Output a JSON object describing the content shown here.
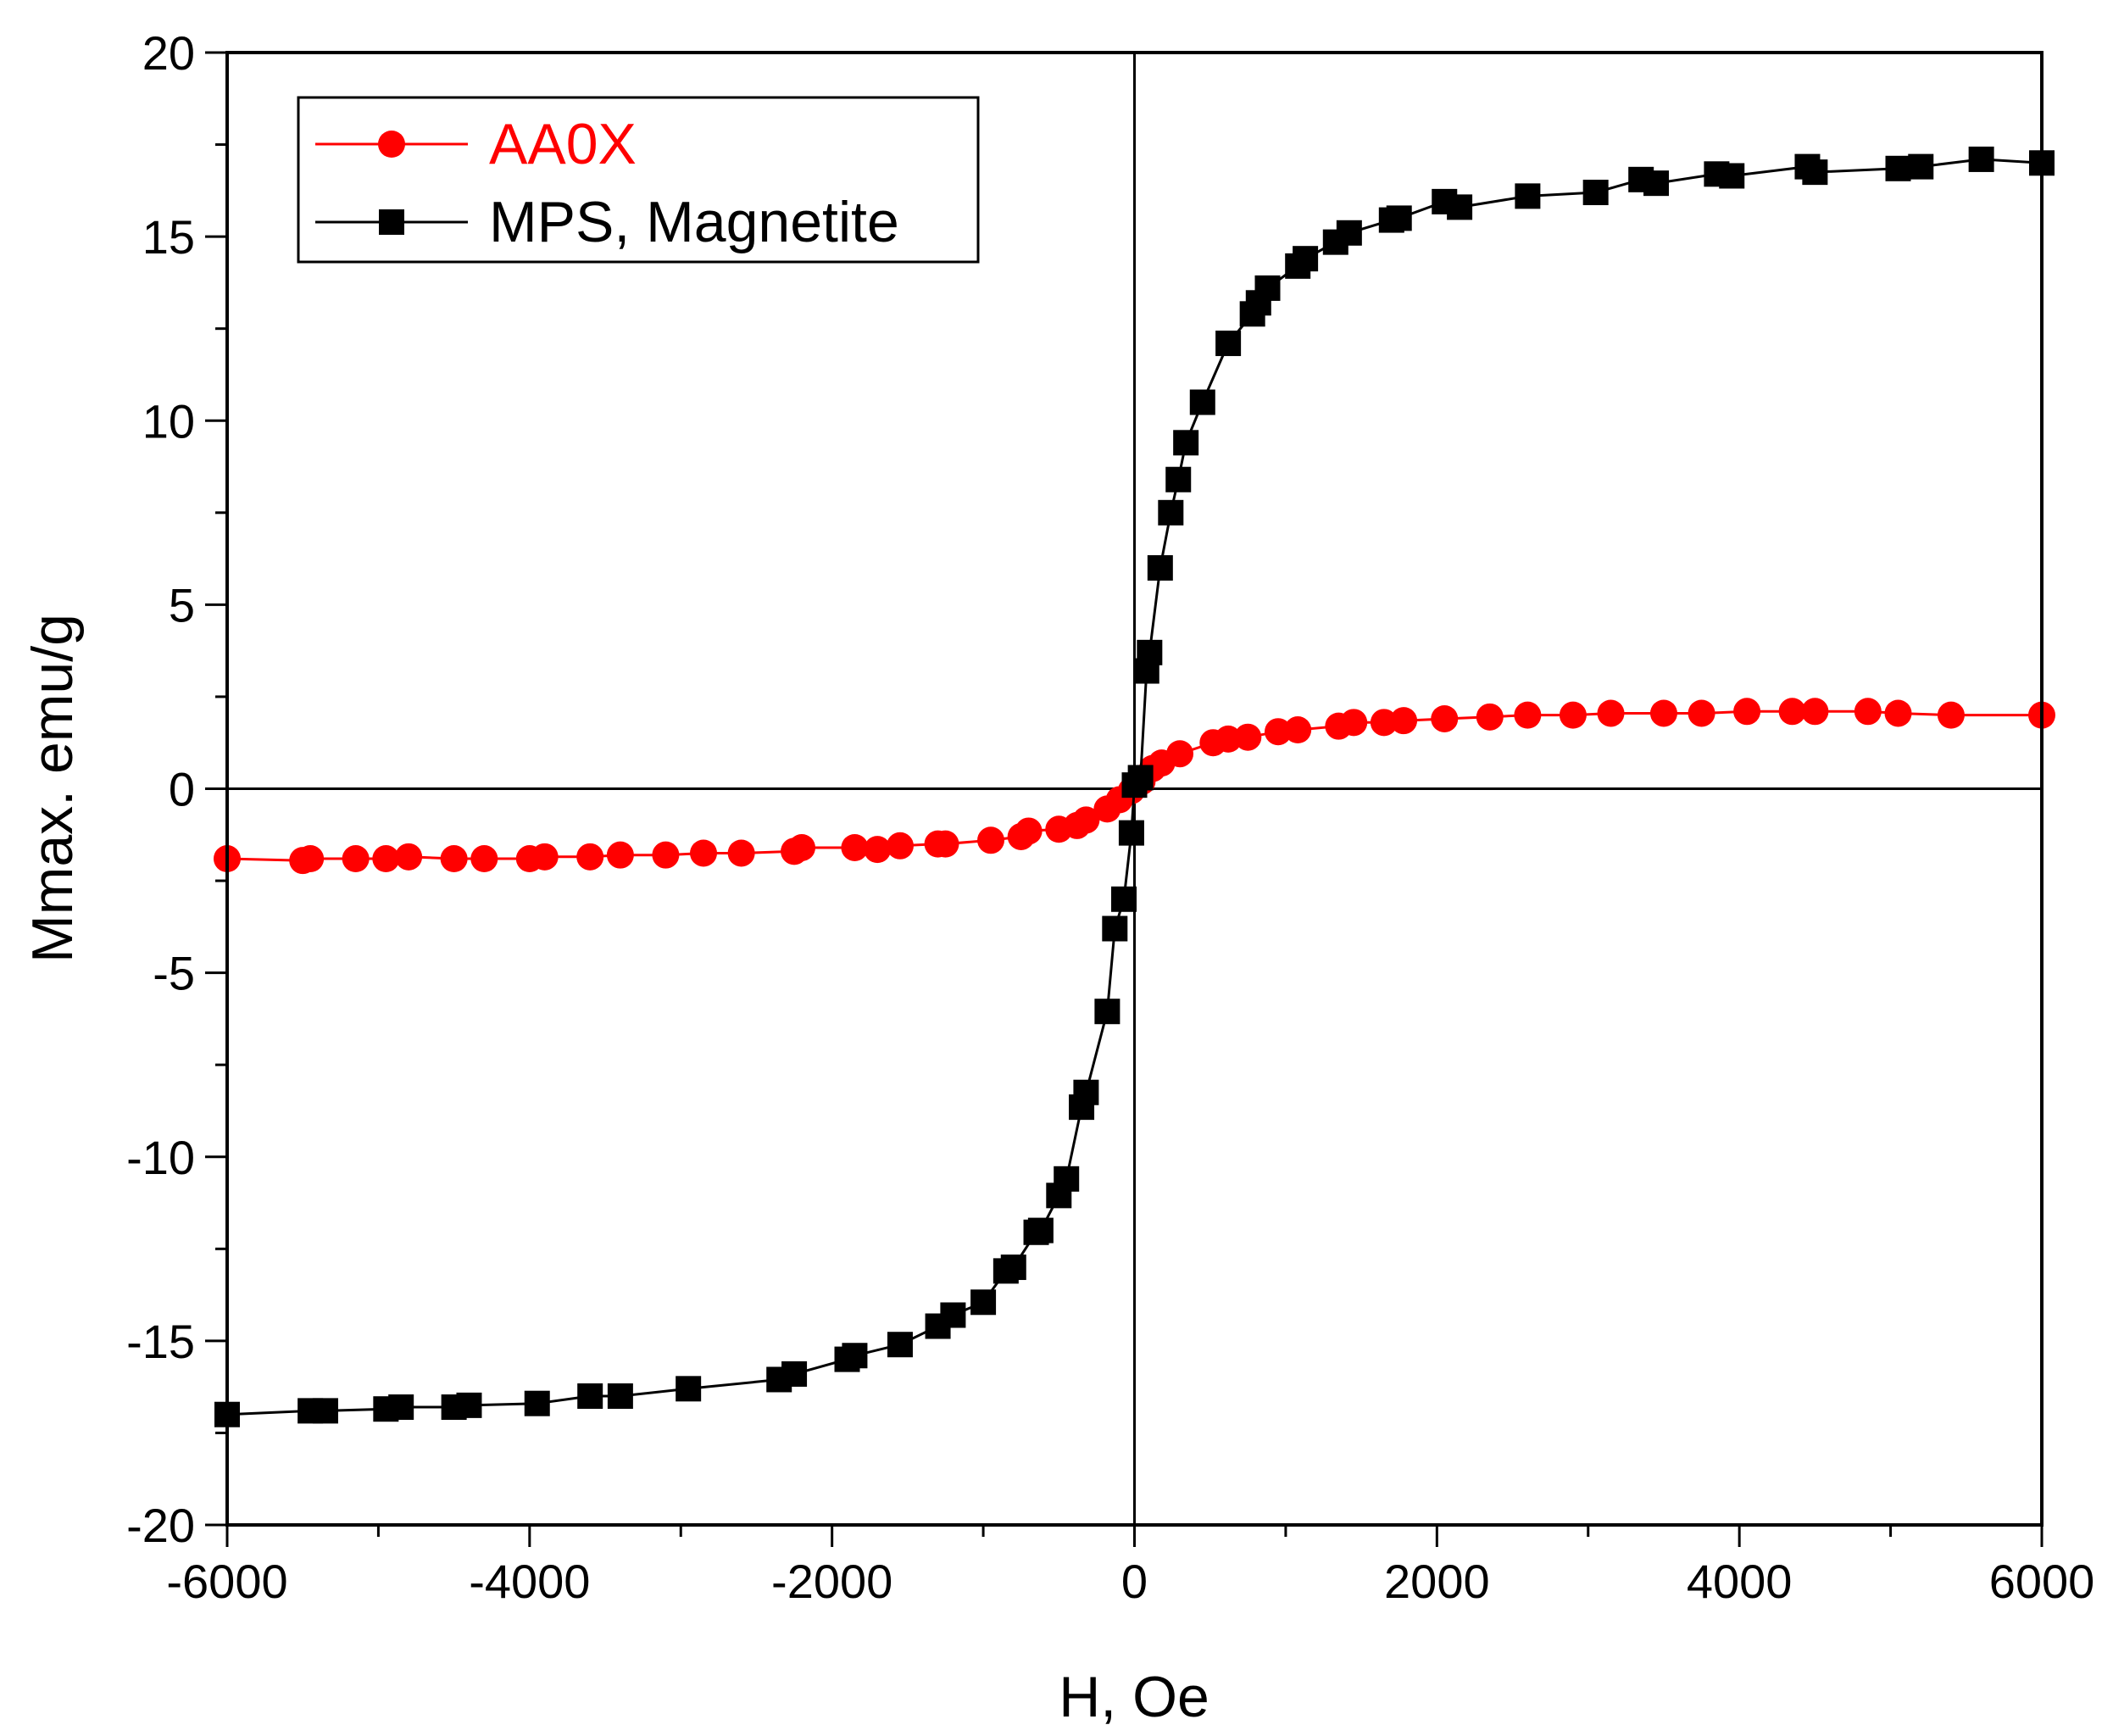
{
  "chart_data": {
    "type": "scatter",
    "title": "",
    "xlabel": "H, Oe",
    "ylabel": "Mmax. emu/g",
    "xlim": [
      -6000,
      6000
    ],
    "ylim": [
      -20,
      20
    ],
    "x_ticks": [
      -6000,
      -4000,
      -2000,
      0,
      2000,
      4000,
      6000
    ],
    "y_ticks": [
      -20,
      -15,
      -10,
      -5,
      0,
      5,
      10,
      15,
      20
    ],
    "x_tick_labels": [
      "-6000",
      "-4000",
      "-2000",
      "0",
      "2000",
      "4000",
      "6000"
    ],
    "y_tick_labels": [
      "-20",
      "-15",
      "-10",
      "-5",
      "0",
      "5",
      "10",
      "15",
      "20"
    ],
    "grid": false,
    "zero_lines": true,
    "legend_position": "top-left",
    "series": [
      {
        "name": "AA0X",
        "color": "#ff0000",
        "marker": "circle",
        "x": [
          -6000,
          -5500,
          -5450,
          -5150,
          -4950,
          -4800,
          -4500,
          -4300,
          -4000,
          -3900,
          -3600,
          -3400,
          -3100,
          -2850,
          -2600,
          -2250,
          -2200,
          -1850,
          -1700,
          -1550,
          -1300,
          -1250,
          -950,
          -750,
          -700,
          -500,
          -380,
          -320,
          -180,
          -100,
          -20,
          50,
          120,
          180,
          300,
          520,
          620,
          750,
          950,
          1080,
          1350,
          1450,
          1650,
          1780,
          2050,
          2350,
          2600,
          2900,
          3150,
          3500,
          3750,
          4050,
          4350,
          4500,
          4850,
          5050,
          5400,
          6000
        ],
        "y": [
          -1.9,
          -1.95,
          -1.9,
          -1.9,
          -1.9,
          -1.85,
          -1.9,
          -1.9,
          -1.9,
          -1.85,
          -1.85,
          -1.8,
          -1.8,
          -1.75,
          -1.75,
          -1.7,
          -1.6,
          -1.6,
          -1.65,
          -1.55,
          -1.5,
          -1.5,
          -1.4,
          -1.3,
          -1.15,
          -1.1,
          -1.0,
          -0.85,
          -0.55,
          -0.3,
          -0.05,
          0.2,
          0.55,
          0.7,
          0.95,
          1.25,
          1.35,
          1.4,
          1.55,
          1.6,
          1.7,
          1.8,
          1.8,
          1.85,
          1.9,
          1.95,
          2.0,
          2.0,
          2.05,
          2.05,
          2.05,
          2.1,
          2.1,
          2.1,
          2.1,
          2.05,
          2.0,
          2.0
        ]
      },
      {
        "name": "MPS, Magnetite",
        "color": "#000000",
        "marker": "square",
        "x": [
          -6000,
          -5450,
          -5350,
          -4950,
          -4850,
          -4500,
          -4400,
          -3950,
          -3600,
          -3400,
          -2950,
          -2350,
          -2250,
          -1900,
          -1850,
          -1550,
          -1300,
          -1200,
          -1000,
          -850,
          -800,
          -650,
          -620,
          -500,
          -450,
          -350,
          -320,
          -180,
          -130,
          -70,
          -20,
          0,
          40,
          80,
          100,
          170,
          240,
          290,
          340,
          450,
          620,
          780,
          820,
          880,
          1080,
          1130,
          1330,
          1420,
          1700,
          1750,
          2050,
          2150,
          2600,
          3050,
          3350,
          3450,
          3850,
          3950,
          4450,
          4500,
          5050,
          5200,
          5600,
          6000
        ],
        "y": [
          -17.0,
          -16.9,
          -16.9,
          -16.85,
          -16.8,
          -16.8,
          -16.75,
          -16.7,
          -16.5,
          -16.5,
          -16.3,
          -16.05,
          -15.9,
          -15.5,
          -15.4,
          -15.1,
          -14.6,
          -14.3,
          -13.95,
          -13.1,
          -13.0,
          -12.05,
          -12.0,
          -11.05,
          -10.6,
          -8.65,
          -8.25,
          -6.05,
          -3.8,
          -3.0,
          -1.2,
          0.1,
          0.3,
          3.2,
          3.7,
          6.0,
          7.5,
          8.4,
          9.4,
          10.5,
          12.1,
          12.9,
          13.2,
          13.6,
          14.2,
          14.4,
          14.85,
          15.1,
          15.45,
          15.5,
          15.95,
          15.8,
          16.1,
          16.2,
          16.55,
          16.45,
          16.7,
          16.65,
          16.9,
          16.75,
          16.85,
          16.9,
          17.1,
          17.0
        ]
      }
    ]
  }
}
